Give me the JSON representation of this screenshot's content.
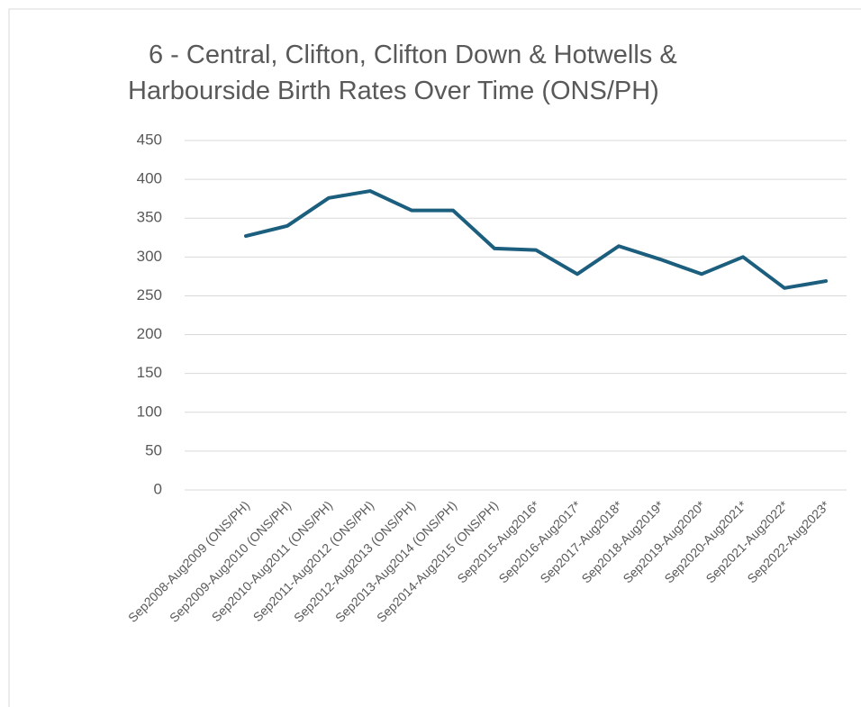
{
  "chart_data": {
    "type": "line",
    "title": [
      "6 - Central, Clifton, Clifton Down & Hotwells &",
      "Harbourside Birth Rates Over Time (ONS/PH)"
    ],
    "categories": [
      "Sep2008-Aug2009 (ONS/PH)",
      "Sep2009-Aug2010 (ONS/PH)",
      "Sep2010-Aug2011 (ONS/PH)",
      "Sep2011-Aug2012 (ONS/PH)",
      "Sep2012-Aug2013 (ONS/PH)",
      "Sep2013-Aug2014 (ONS/PH)",
      "Sep2014-Aug2015 (ONS/PH)",
      "Sep2015-Aug2016*",
      "Sep2016-Aug2017*",
      "Sep2017-Aug2018*",
      "Sep2018-Aug2019*",
      "Sep2019-Aug2020*",
      "Sep2020-Aug2021*",
      "Sep2021-Aug2022*",
      "Sep2022-Aug2023*"
    ],
    "values": [
      327,
      340,
      376,
      385,
      360,
      360,
      311,
      309,
      278,
      314,
      297,
      278,
      300,
      260,
      269
    ],
    "color": "#1b5e7d",
    "ylim": [
      0,
      450
    ],
    "yticks": [
      0,
      50,
      100,
      150,
      200,
      250,
      300,
      350,
      400,
      450
    ],
    "grid": true
  }
}
